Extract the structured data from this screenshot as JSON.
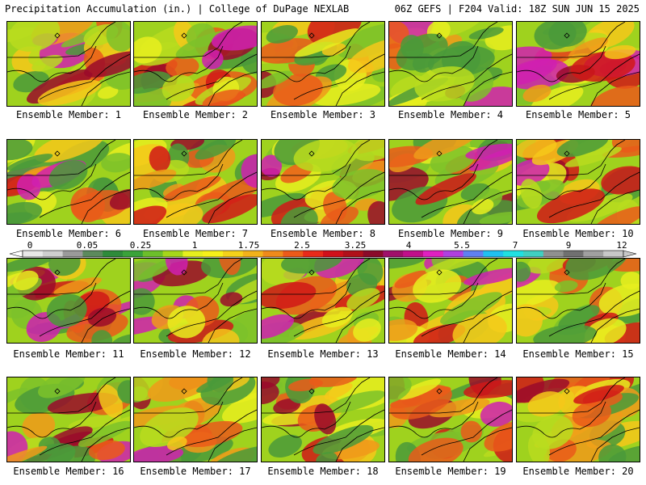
{
  "header": {
    "left": "Precipitation Accumulation (in.) | College of DuPage NEXLAB",
    "right": "06Z GEFS | F204 Valid: 18Z SUN JUN 15 2025"
  },
  "member_label_prefix": "Ensemble Member: ",
  "members": [
    1,
    2,
    3,
    4,
    5,
    6,
    7,
    8,
    9,
    10,
    11,
    12,
    13,
    14,
    15,
    16,
    17,
    18,
    19,
    20
  ],
  "member_labels": [
    "Ensemble Member: 1",
    "Ensemble Member: 2",
    "Ensemble Member: 3",
    "Ensemble Member: 4",
    "Ensemble Member: 5",
    "Ensemble Member: 6",
    "Ensemble Member: 7",
    "Ensemble Member: 8",
    "Ensemble Member: 9",
    "Ensemble Member: 10",
    "Ensemble Member: 11",
    "Ensemble Member: 12",
    "Ensemble Member: 13",
    "Ensemble Member: 14",
    "Ensemble Member: 15",
    "Ensemble Member: 16",
    "Ensemble Member: 17",
    "Ensemble Member: 18",
    "Ensemble Member: 19",
    "Ensemble Member: 20"
  ],
  "colorbar": {
    "tick_labels": [
      "0",
      "0.05",
      "0.25",
      "1",
      "1.75",
      "2.5",
      "3.25",
      "4",
      "5.5",
      "7",
      "9",
      "12"
    ],
    "colors": [
      "#e8e8e8",
      "#cfcfcf",
      "#9a9a9a",
      "#5c8a5c",
      "#2e8b3a",
      "#3aa33a",
      "#6cbf2a",
      "#a6d61a",
      "#e6ef1e",
      "#f7f01a",
      "#f5d21a",
      "#f2b21a",
      "#ef8a1a",
      "#ec5a1a",
      "#e82a1a",
      "#d0101a",
      "#b0101a",
      "#8a0a2a",
      "#a0106a",
      "#c0108a",
      "#e020c0",
      "#b040e0",
      "#6080f0",
      "#20c0f0",
      "#20e0e0",
      "#40d0c0",
      "#909090",
      "#707070",
      "#a0a0a0",
      "#c8c8c8"
    ]
  }
}
